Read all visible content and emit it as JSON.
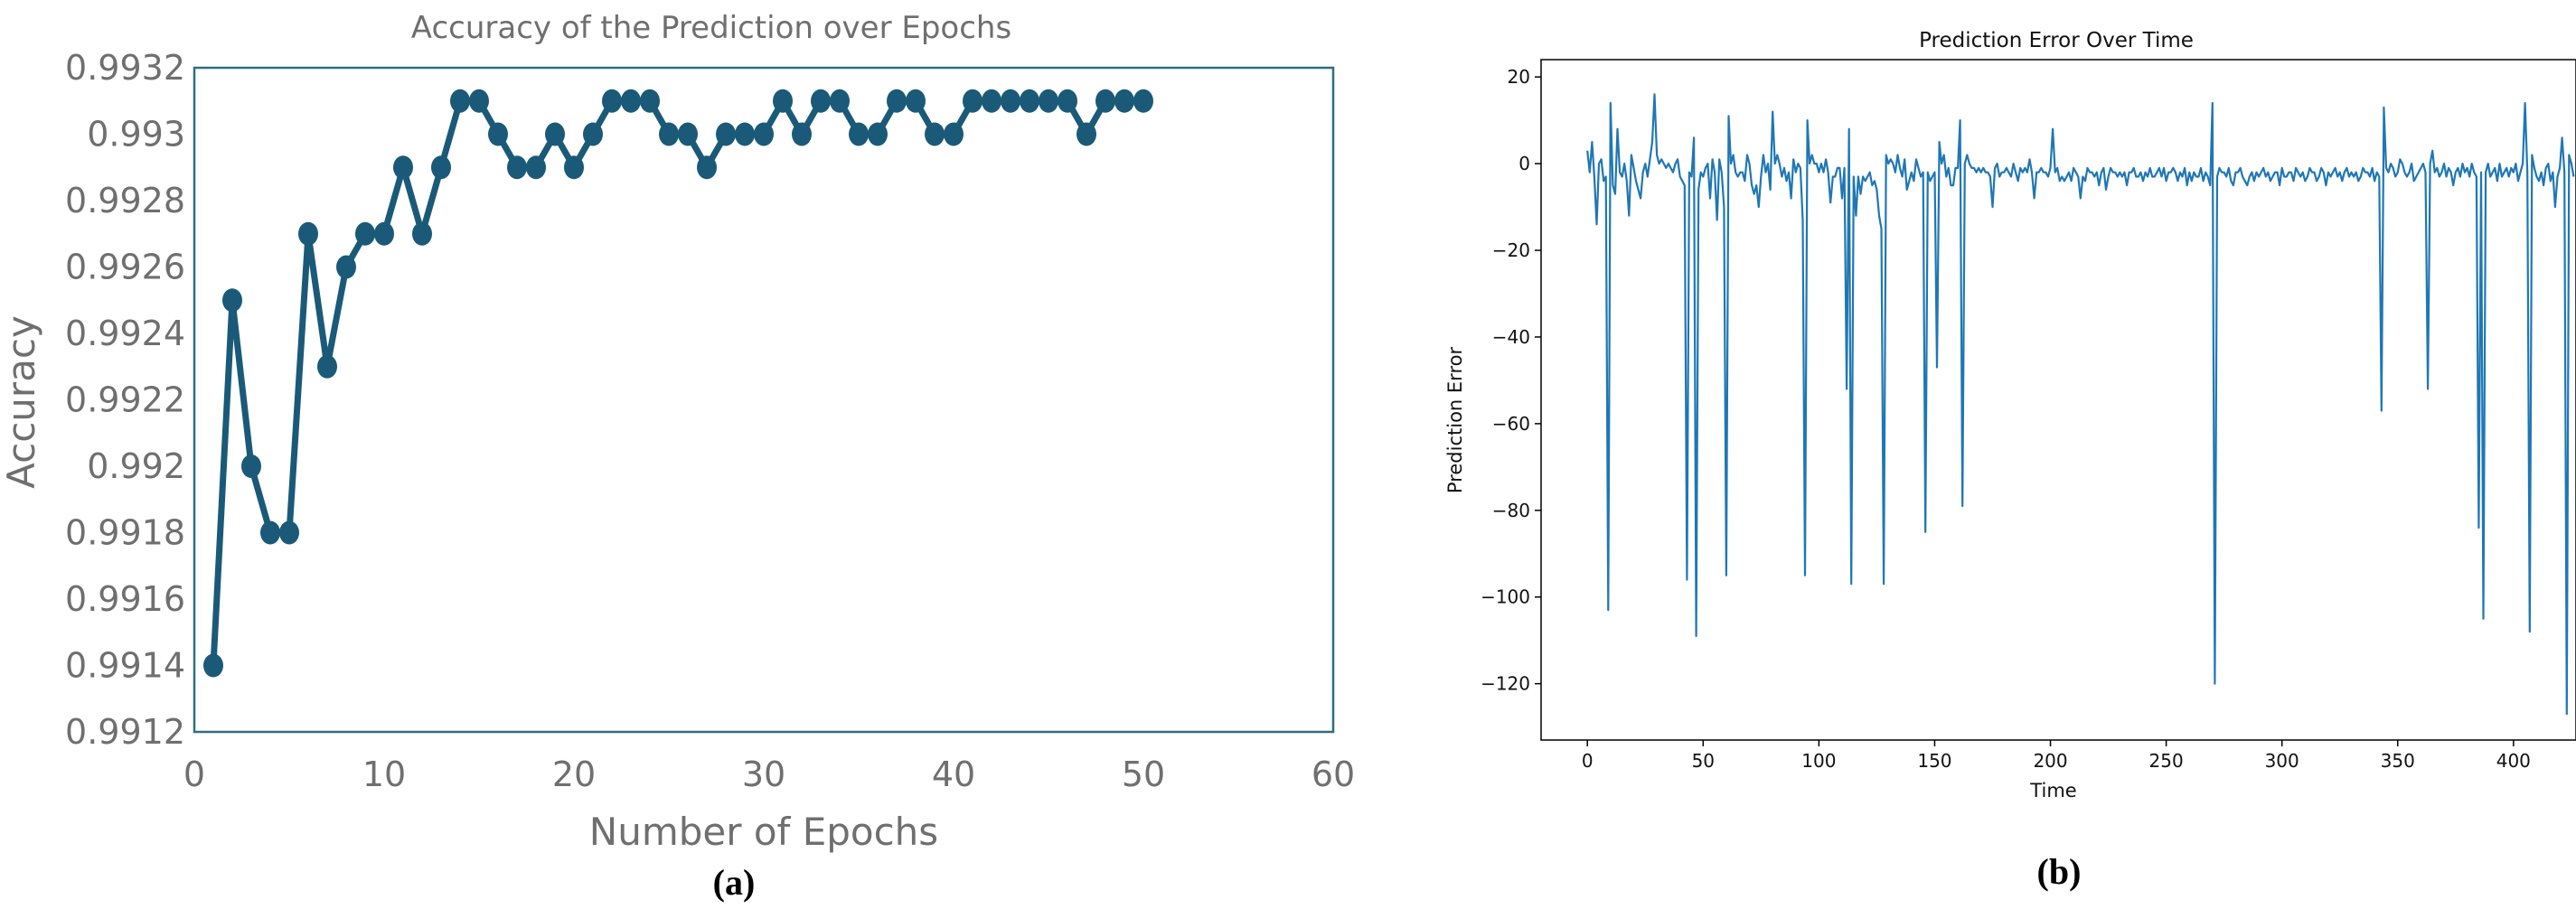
{
  "chart_data": [
    {
      "type": "line",
      "panel_label": "(a)",
      "title": "Accuracy of the Prediction over Epochs",
      "xlabel": "Number of Epochs",
      "ylabel": "Accuracy",
      "xlim": [
        0,
        60
      ],
      "ylim": [
        0.9912,
        0.9932
      ],
      "xticks": [
        "0",
        "10",
        "20",
        "30",
        "40",
        "50",
        "60"
      ],
      "yticks": [
        "0.9912",
        "0.9914",
        "0.9916",
        "0.9918",
        "0.992",
        "0.9922",
        "0.9924",
        "0.9926",
        "0.9928",
        "0.993",
        "0.9932"
      ],
      "grid": false,
      "markers": true,
      "series": [
        {
          "color": "#1a5a78",
          "x": [
            1,
            2,
            3,
            4,
            5,
            6,
            7,
            8,
            9,
            10,
            11,
            12,
            13,
            14,
            15,
            16,
            17,
            18,
            19,
            20,
            21,
            22,
            23,
            24,
            25,
            26,
            27,
            28,
            29,
            30,
            31,
            32,
            33,
            34,
            35,
            36,
            37,
            38,
            39,
            40,
            41,
            42,
            43,
            44,
            45,
            46,
            47,
            48,
            49,
            50
          ],
          "y": [
            0.9914,
            0.9925,
            0.992,
            0.9918,
            0.9918,
            0.9927,
            0.9923,
            0.9926,
            0.9927,
            0.9927,
            0.9929,
            0.9927,
            0.9929,
            0.9931,
            0.9931,
            0.993,
            0.9929,
            0.9929,
            0.993,
            0.9929,
            0.993,
            0.9931,
            0.9931,
            0.9931,
            0.993,
            0.993,
            0.9929,
            0.993,
            0.993,
            0.993,
            0.9931,
            0.993,
            0.9931,
            0.9931,
            0.993,
            0.993,
            0.9931,
            0.9931,
            0.993,
            0.993,
            0.9931,
            0.9931,
            0.9931,
            0.9931,
            0.9931,
            0.9931,
            0.993,
            0.9931,
            0.9931,
            0.9931
          ]
        }
      ]
    },
    {
      "type": "line",
      "panel_label": "(b)",
      "title": "Prediction Error Over Time",
      "xlabel": "Time",
      "ylabel": "Prediction Error",
      "xlim": [
        -20,
        427
      ],
      "ylim": [
        -133,
        24
      ],
      "xticks": [
        "0",
        "50",
        "100",
        "150",
        "200",
        "250",
        "300",
        "350",
        "400"
      ],
      "yticks": [
        "20",
        "0",
        "−20",
        "−40",
        "−60",
        "−80",
        "−100",
        "−120"
      ],
      "grid": false,
      "markers": false,
      "series": [
        {
          "color": "#1f77b4",
          "x_start": 0,
          "x_step": 1,
          "y": [
            3,
            -2,
            5,
            -3,
            -14,
            0,
            1,
            -4,
            -3,
            -103,
            14,
            -5,
            -7,
            8,
            -2,
            -3,
            0,
            -4,
            -12,
            2,
            -1,
            -4,
            -6,
            -8,
            -2,
            0,
            -3,
            1,
            5,
            16,
            2,
            0,
            1,
            0,
            -1,
            0,
            -1,
            -2,
            0,
            1,
            -3,
            -4,
            -5,
            -96,
            -2,
            -3,
            6,
            -109,
            -6,
            -2,
            -3,
            -1,
            0,
            -8,
            1,
            -2,
            -13,
            1,
            -2,
            -10,
            -95,
            11,
            0,
            2,
            -2,
            -3,
            -2,
            -2,
            -4,
            2,
            0,
            -5,
            -7,
            -5,
            -10,
            -3,
            2,
            -2,
            0,
            -6,
            12,
            0,
            2,
            0,
            -3,
            -1,
            -4,
            -2,
            -8,
            1,
            -2,
            0,
            -1,
            -13,
            -95,
            10,
            0,
            2,
            0,
            0,
            -2,
            0,
            -2,
            1,
            -2,
            -9,
            -3,
            -3,
            -1,
            -1,
            -8,
            -1,
            -52,
            8,
            -97,
            -3,
            -12,
            -3,
            -7,
            -3,
            -4,
            -3,
            -2,
            -5,
            -4,
            -6,
            -12,
            -15,
            -97,
            2,
            0,
            1,
            0,
            -2,
            2,
            -1,
            -3,
            1,
            -6,
            -4,
            -2,
            -4,
            1,
            -1,
            -3,
            -2,
            -85,
            -2,
            -4,
            -3,
            -2,
            -47,
            5,
            0,
            2,
            -3,
            -1,
            -5,
            -5,
            -1,
            -1,
            10,
            -79,
            0,
            2,
            0,
            -1,
            -1,
            -2,
            -1,
            -2,
            -1,
            -2,
            -2,
            -3,
            -10,
            -1,
            0,
            -3,
            -2,
            -2,
            -1,
            -2,
            -3,
            0,
            -2,
            -4,
            -1,
            -2,
            -1,
            -2,
            1,
            -2,
            -8,
            -2,
            -2,
            -1,
            -2,
            -2,
            -3,
            -1,
            8,
            -2,
            -1,
            -4,
            -3,
            -4,
            -3,
            -2,
            -4,
            -1,
            -2,
            -3,
            -8,
            -3,
            -4,
            -1,
            -2,
            -2,
            -3,
            -2,
            -5,
            -2,
            -1,
            -6,
            -3,
            -1,
            -2,
            -2,
            -3,
            -2,
            -3,
            -2,
            -5,
            -2,
            -2,
            -1,
            -3,
            -3,
            -2,
            -4,
            -2,
            -3,
            -1,
            -3,
            -3,
            -2,
            -1,
            -3,
            -1,
            -4,
            -2,
            -2,
            -1,
            -2,
            -4,
            -2,
            -3,
            -1,
            -5,
            -2,
            -4,
            -2,
            -3,
            -3,
            -1,
            -4,
            -2,
            -3,
            -5,
            14,
            -120,
            -3,
            -1,
            -2,
            -2,
            -3,
            -1,
            -4,
            -5,
            -2,
            -2,
            -1,
            -3,
            -4,
            -5,
            -3,
            -2,
            -4,
            -2,
            -3,
            -2,
            -1,
            -3,
            -2,
            -4,
            -3,
            -2,
            -2,
            -5,
            -1,
            -3,
            -3,
            -2,
            -2,
            -4,
            -1,
            -2,
            -3,
            -2,
            -4,
            -3,
            -1,
            -2,
            -2,
            -4,
            -3,
            -1,
            -2,
            -5,
            -2,
            -3,
            -2,
            -1,
            -3,
            -2,
            -4,
            -2,
            -1,
            -3,
            -2,
            -3,
            -2,
            -4,
            -3,
            -1,
            -2,
            -2,
            -3,
            -1,
            -4,
            -2,
            -3,
            -57,
            13,
            -1,
            -2,
            0,
            -1,
            -3,
            -2,
            1,
            0,
            -2,
            -3,
            -2,
            0,
            -4,
            -3,
            -2,
            -1,
            0,
            -2,
            -52,
            0,
            3,
            -2,
            -1,
            -3,
            -2,
            0,
            -3,
            -1,
            -2,
            -5,
            -2,
            -1,
            -3,
            0,
            -2,
            -1,
            -3,
            0,
            -2,
            -3,
            -84,
            -2,
            -105,
            -2,
            0,
            -3,
            -2,
            -1,
            -4,
            0,
            -3,
            -2,
            -1,
            -3,
            -1,
            -2,
            0,
            -4,
            -2,
            0,
            14,
            -2,
            -108,
            2,
            -1,
            -3,
            -4,
            -2,
            -5,
            -1,
            0,
            -4,
            -2,
            -10,
            -3,
            -1,
            6,
            -2,
            -127,
            2,
            0,
            -3
          ]
        }
      ]
    }
  ]
}
